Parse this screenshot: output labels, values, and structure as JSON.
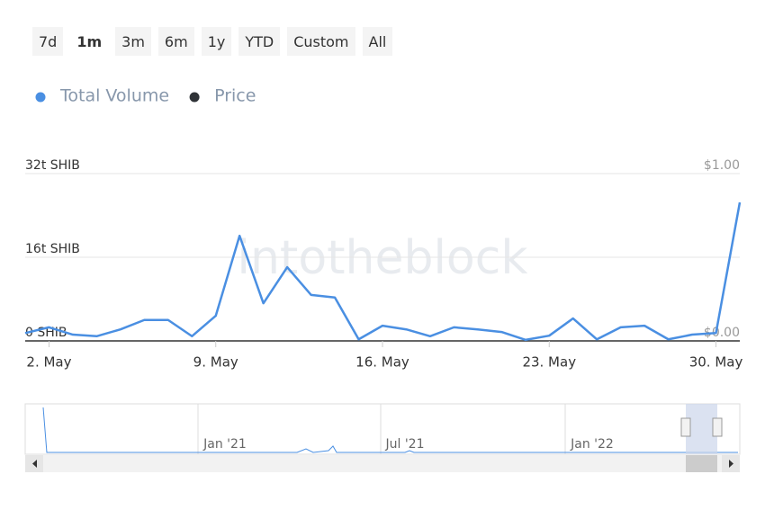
{
  "chart_data": {
    "type": "line",
    "range_selector": {
      "buttons": [
        "7d",
        "1m",
        "3m",
        "6m",
        "1y",
        "YTD",
        "Custom",
        "All"
      ],
      "selected": "1m"
    },
    "watermark": "intotheblock",
    "categories": [
      null,
      "2. May",
      null,
      null,
      null,
      null,
      null,
      null,
      "9. May",
      null,
      null,
      null,
      null,
      null,
      null,
      "16. May",
      null,
      null,
      null,
      null,
      null,
      null,
      "23. May",
      null,
      null,
      null,
      null,
      null,
      null,
      "30. May",
      null
    ],
    "series": [
      {
        "name": "Total Volume",
        "color": "#4a8fe2",
        "values": [
          1.5,
          2.6,
          1.2,
          0.9,
          2.2,
          4.0,
          4.0,
          0.9,
          4.8,
          20.1,
          7.2,
          14.1,
          8.8,
          8.3,
          0.3,
          2.9,
          2.2,
          0.9,
          2.6,
          2.2,
          1.7,
          0.2,
          1.0,
          4.3,
          0.3,
          2.6,
          2.9,
          0.3,
          1.2,
          1.5,
          26.5
        ]
      },
      {
        "name": "Price",
        "color": "#2f3337",
        "axis": "y2",
        "values": [
          null,
          null,
          null,
          null,
          null,
          null,
          null,
          null,
          null,
          null,
          null,
          null,
          null,
          null,
          null,
          null,
          null,
          null,
          null,
          null,
          null,
          null,
          null,
          null,
          null,
          null,
          null,
          null,
          null,
          null,
          null
        ]
      }
    ],
    "ylim": [
      0,
      32
    ],
    "yticks": [
      {
        "value": 0,
        "label": "0 SHIB"
      },
      {
        "value": 16,
        "label": "16t SHIB"
      },
      {
        "value": 32,
        "label": "32t SHIB"
      }
    ],
    "y2lim": [
      0,
      1
    ],
    "y2ticks": [
      {
        "value": 0,
        "label": "$0.00"
      },
      {
        "value": 1,
        "label": "$1.00"
      }
    ],
    "grid": true,
    "navigator": {
      "labels": [
        "Jan '21",
        "Jul '21",
        "Jan '22"
      ]
    }
  }
}
